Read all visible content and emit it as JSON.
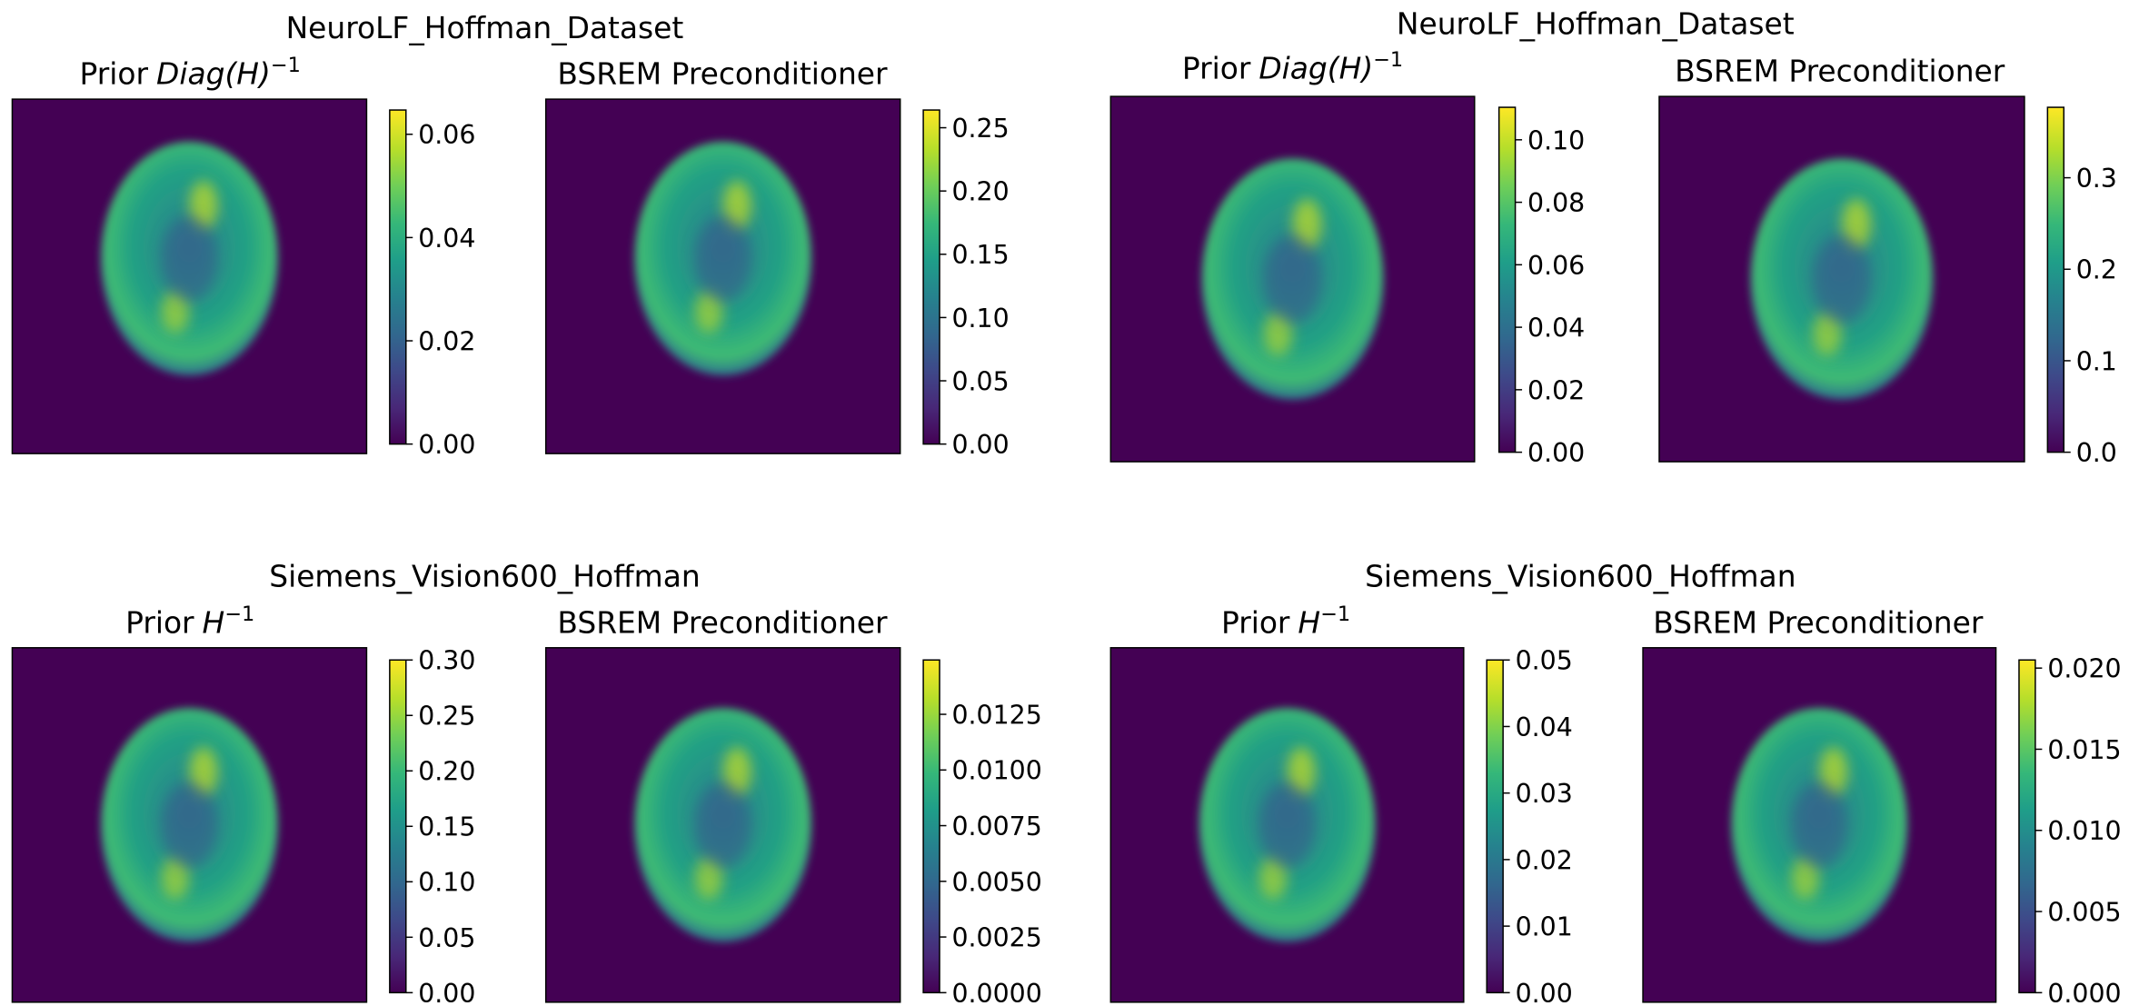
{
  "chart_data": [
    {
      "type": "image",
      "title": "NeuroLF_Hoffman_Dataset",
      "panels": [
        {
          "title": "Prior",
          "title_math": "Diag(H)",
          "title_sup": "−1",
          "clim": [
            0,
            0.0647
          ],
          "cticks": [
            {
              "value": 0,
              "label": "0.00"
            },
            0.02,
            0.04,
            0.06
          ]
        },
        {
          "title": "BSREM Preconditioner",
          "clim": [
            0,
            0.264
          ],
          "cticks": [
            {
              "value": 0,
              "label": "0.00"
            },
            0.05,
            {
              "value": 0.1,
              "label": "0.10"
            },
            0.15,
            {
              "value": 0.2,
              "label": "0.20"
            },
            0.25
          ]
        }
      ]
    },
    {
      "type": "image",
      "title": "NeuroLF_Hoffman_Dataset",
      "panels": [
        {
          "title": "Prior",
          "title_math": "Diag(H)",
          "title_sup": "−1",
          "clim": [
            0,
            0.1104
          ],
          "cticks": [
            {
              "value": 0,
              "label": "0.00"
            },
            0.02,
            0.04,
            0.06,
            0.08,
            {
              "value": 0.1,
              "label": "0.10"
            }
          ]
        },
        {
          "title": "BSREM Preconditioner",
          "clim": [
            0,
            0.377
          ],
          "cticks": [
            {
              "value": 0,
              "label": "0.0"
            },
            0.1,
            0.2,
            0.3
          ]
        }
      ]
    },
    {
      "type": "image",
      "title": "Siemens_Vision600_Hoffman",
      "panels": [
        {
          "title": "Prior",
          "title_math": "H",
          "title_sup": "−1",
          "clim": [
            0,
            0.3
          ],
          "cticks": [
            {
              "value": 0,
              "label": "0.00"
            },
            0.05,
            {
              "value": 0.1,
              "label": "0.10"
            },
            0.15,
            {
              "value": 0.2,
              "label": "0.20"
            },
            0.25,
            {
              "value": 0.3,
              "label": "0.30"
            }
          ]
        },
        {
          "title": "BSREM Preconditioner",
          "clim": [
            0,
            0.01494
          ],
          "cticks": [
            {
              "value": 0,
              "label": "0.0000"
            },
            0.0025,
            {
              "value": 0.005,
              "label": "0.0050"
            },
            0.0075,
            {
              "value": 0.01,
              "label": "0.0100"
            },
            0.0125
          ]
        }
      ]
    },
    {
      "type": "image",
      "title": "Siemens_Vision600_Hoffman",
      "panels": [
        {
          "title": "Prior",
          "title_math": "H",
          "title_sup": "−1",
          "clim": [
            0,
            0.05
          ],
          "cticks": [
            {
              "value": 0,
              "label": "0.00"
            },
            0.01,
            0.02,
            0.03,
            0.04,
            0.05
          ]
        },
        {
          "title": "BSREM Preconditioner",
          "clim": [
            0,
            0.0205
          ],
          "cticks": [
            {
              "value": 0,
              "label": "0.000"
            },
            0.005,
            {
              "value": 0.01,
              "label": "0.010"
            },
            0.015,
            {
              "value": 0.02,
              "label": "0.020"
            }
          ]
        }
      ]
    }
  ]
}
